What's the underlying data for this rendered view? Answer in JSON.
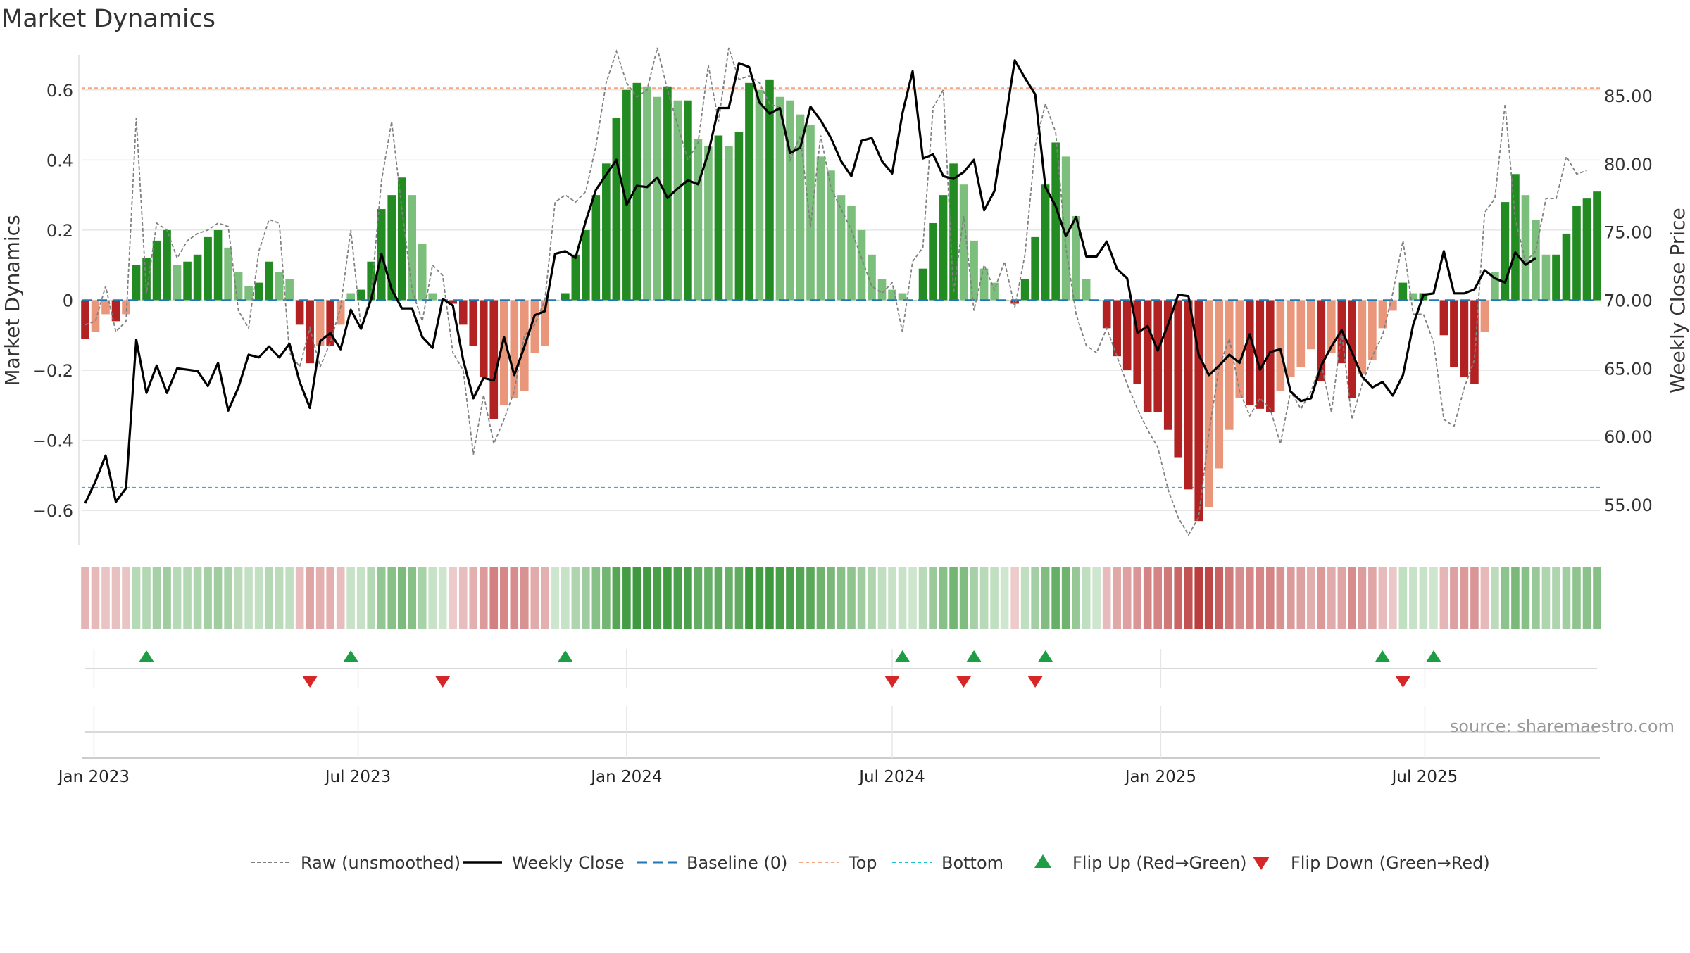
{
  "title": "Market Dynamics",
  "source": "source: sharemaestro.com",
  "chart_data": {
    "type": "bar",
    "title": "Market Dynamics",
    "ylabel_left": "Market Dynamics",
    "ylabel_right": "Weekly Close Price",
    "ylim_left": [
      -0.7,
      0.7
    ],
    "ylim_right": [
      52.0,
      88.0
    ],
    "yticks_left": [
      {
        "value": 0.6,
        "label": "0.6"
      },
      {
        "value": 0.4,
        "label": "0.4"
      },
      {
        "value": 0.2,
        "label": "0.2"
      },
      {
        "value": 0.0,
        "label": "0"
      },
      {
        "value": -0.2,
        "label": "−0.2"
      },
      {
        "value": -0.4,
        "label": "−0.4"
      },
      {
        "value": -0.6,
        "label": "−0.6"
      }
    ],
    "yticks_right": [
      {
        "value": 85,
        "label": "85.00"
      },
      {
        "value": 80,
        "label": "80.00"
      },
      {
        "value": 75,
        "label": "75.00"
      },
      {
        "value": 70,
        "label": "70.00"
      },
      {
        "value": 65,
        "label": "65.00"
      },
      {
        "value": 60,
        "label": "60.00"
      },
      {
        "value": 55,
        "label": "55.00"
      }
    ],
    "x_start": "2022-12-26",
    "xticks": [
      {
        "date": "2023-01-01",
        "label": "Jan 2023"
      },
      {
        "date": "2023-07-01",
        "label": "Jul 2023"
      },
      {
        "date": "2024-01-01",
        "label": "Jan 2024"
      },
      {
        "date": "2024-07-01",
        "label": "Jul 2024"
      },
      {
        "date": "2025-01-01",
        "label": "Jan 2025"
      },
      {
        "date": "2025-07-01",
        "label": "Jul 2025"
      }
    ],
    "top_threshold": 0.605,
    "bottom_threshold": -0.535,
    "baseline": 0,
    "colors": {
      "strong_green": "#228B22",
      "light_green": "#7CBF7C",
      "strong_red": "#B22222",
      "light_red": "#E9967A",
      "weekly_close": "#000000",
      "raw": "#808080",
      "baseline": "#1f77b4",
      "top": "#F4A582",
      "bottom": "#17BECF",
      "flip_up": "#1E9E44",
      "flip_down": "#D62728",
      "grid": "#E6E6E6"
    },
    "series": [
      {
        "name": "Market Dynamics",
        "kind": "bar",
        "values": [
          -0.11,
          -0.09,
          -0.04,
          -0.06,
          -0.04,
          0.1,
          0.12,
          0.17,
          0.2,
          0.1,
          0.11,
          0.13,
          0.18,
          0.2,
          0.15,
          0.08,
          0.04,
          0.05,
          0.11,
          0.08,
          0.06,
          -0.07,
          -0.18,
          -0.13,
          -0.13,
          -0.07,
          0.02,
          0.03,
          0.11,
          0.26,
          0.3,
          0.35,
          0.3,
          0.16,
          0.02,
          0.0,
          -0.01,
          -0.07,
          -0.13,
          -0.22,
          -0.34,
          -0.3,
          -0.28,
          -0.26,
          -0.15,
          -0.13,
          0.0,
          0.02,
          0.13,
          0.2,
          0.3,
          0.39,
          0.52,
          0.6,
          0.62,
          0.61,
          0.58,
          0.61,
          0.57,
          0.57,
          0.46,
          0.44,
          0.47,
          0.44,
          0.48,
          0.62,
          0.6,
          0.63,
          0.58,
          0.57,
          0.53,
          0.5,
          0.41,
          0.37,
          0.3,
          0.27,
          0.2,
          0.13,
          0.06,
          0.03,
          0.02,
          0.0,
          0.09,
          0.22,
          0.3,
          0.39,
          0.33,
          0.17,
          0.09,
          0.05,
          0.0,
          -0.01,
          0.06,
          0.18,
          0.33,
          0.45,
          0.41,
          0.24,
          0.06,
          0.0,
          -0.08,
          -0.16,
          -0.2,
          -0.24,
          -0.32,
          -0.32,
          -0.37,
          -0.45,
          -0.54,
          -0.63,
          -0.59,
          -0.48,
          -0.37,
          -0.28,
          -0.3,
          -0.31,
          -0.32,
          -0.26,
          -0.22,
          -0.19,
          -0.14,
          -0.23,
          -0.15,
          -0.18,
          -0.28,
          -0.21,
          -0.17,
          -0.08,
          -0.03,
          0.05,
          0.02,
          0.02,
          0.0,
          -0.1,
          -0.19,
          -0.22,
          -0.24,
          -0.09,
          0.08,
          0.28,
          0.36,
          0.3,
          0.23,
          0.13,
          0.13,
          0.19,
          0.27,
          0.29,
          0.31
        ]
      },
      {
        "name": "Raw (unsmoothed)",
        "kind": "line",
        "values": [
          -0.07,
          -0.06,
          0.04,
          -0.09,
          -0.06,
          0.52,
          0.02,
          0.22,
          0.2,
          0.12,
          0.17,
          0.19,
          0.2,
          0.22,
          0.21,
          -0.03,
          -0.08,
          0.14,
          0.23,
          0.22,
          -0.15,
          -0.19,
          -0.08,
          -0.19,
          -0.12,
          -0.02,
          0.2,
          -0.08,
          0.02,
          0.34,
          0.51,
          0.26,
          0.03,
          -0.06,
          0.1,
          0.07,
          -0.15,
          -0.2,
          -0.44,
          -0.27,
          -0.41,
          -0.34,
          -0.26,
          -0.1,
          -0.07,
          0.0,
          0.28,
          0.3,
          0.28,
          0.31,
          0.44,
          0.62,
          0.71,
          0.62,
          0.58,
          0.6,
          0.72,
          0.6,
          0.5,
          0.4,
          0.45,
          0.67,
          0.51,
          0.72,
          0.63,
          0.64,
          0.62,
          0.56,
          0.55,
          0.4,
          0.47,
          0.21,
          0.47,
          0.32,
          0.26,
          0.2,
          0.12,
          0.04,
          0.02,
          0.05,
          -0.09,
          0.11,
          0.15,
          0.55,
          0.6,
          0.02,
          0.24,
          -0.03,
          0.1,
          0.03,
          0.11,
          -0.02,
          0.13,
          0.44,
          0.56,
          0.48,
          0.15,
          -0.04,
          -0.13,
          -0.15,
          -0.08,
          -0.16,
          -0.24,
          -0.31,
          -0.37,
          -0.42,
          -0.54,
          -0.62,
          -0.67,
          -0.62,
          -0.38,
          -0.19,
          -0.11,
          -0.26,
          -0.33,
          -0.28,
          -0.31,
          -0.41,
          -0.26,
          -0.31,
          -0.26,
          -0.18,
          -0.32,
          -0.09,
          -0.34,
          -0.24,
          -0.16,
          -0.1,
          0.02,
          0.17,
          -0.04,
          -0.04,
          -0.12,
          -0.34,
          -0.36,
          -0.25,
          -0.17,
          0.25,
          0.29,
          0.56,
          0.23,
          0.11,
          0.14,
          0.29,
          0.29,
          0.41,
          0.36,
          0.37
        ]
      },
      {
        "name": "Weekly Close",
        "kind": "line",
        "axis": "right",
        "values": [
          55.1,
          56.7,
          58.6,
          55.2,
          56.2,
          67.1,
          63.2,
          65.2,
          63.2,
          65.0,
          64.9,
          64.8,
          63.7,
          65.4,
          61.9,
          63.6,
          66.0,
          65.8,
          66.6,
          65.8,
          66.8,
          64.0,
          62.1,
          67.0,
          67.6,
          66.4,
          69.3,
          67.9,
          70.1,
          73.4,
          70.8,
          69.4,
          69.4,
          67.3,
          66.5,
          70.1,
          69.6,
          65.6,
          62.8,
          64.3,
          64.1,
          67.3,
          64.5,
          66.6,
          68.9,
          69.2,
          73.4,
          73.6,
          73.1,
          75.8,
          78.1,
          79.2,
          80.3,
          77.0,
          78.4,
          78.3,
          79.0,
          77.5,
          78.2,
          78.8,
          78.5,
          80.8,
          84.1,
          84.1,
          87.4,
          87.1,
          84.5,
          83.7,
          84.1,
          80.8,
          81.2,
          84.2,
          83.2,
          81.9,
          80.2,
          79.1,
          81.7,
          81.9,
          80.2,
          79.3,
          83.7,
          86.8,
          80.4,
          80.7,
          79.1,
          78.9,
          79.4,
          80.3,
          76.6,
          78.0,
          82.8,
          87.6,
          86.3,
          85.1,
          78.3,
          76.9,
          74.7,
          76.1,
          73.2,
          73.2,
          74.3,
          72.3,
          71.6,
          67.6,
          68.1,
          66.3,
          68.2,
          70.4,
          70.3,
          66.0,
          64.5,
          65.2,
          66.0,
          65.4,
          67.5,
          64.9,
          66.2,
          66.4,
          63.3,
          62.6,
          62.8,
          65.2,
          66.6,
          67.8,
          66.2,
          64.4,
          63.6,
          64.0,
          63.0,
          64.5,
          68.2,
          70.4,
          70.5,
          73.6,
          70.5,
          70.5,
          70.8,
          72.2,
          71.6,
          71.3,
          73.5,
          72.6,
          73.1
        ]
      }
    ],
    "flips_up": [
      "2023-02-06",
      "2023-06-26",
      "2023-11-20",
      "2024-07-08",
      "2024-08-26",
      "2024-10-14",
      "2025-06-02",
      "2025-07-07"
    ],
    "flips_down": [
      "2023-05-29",
      "2023-08-28",
      "2024-07-01",
      "2024-08-19",
      "2024-10-07",
      "2025-06-16"
    ],
    "legend": {
      "placement": "bottom",
      "entries": [
        {
          "label": "Raw (unsmoothed)",
          "kind": "raw"
        },
        {
          "label": "Weekly Close",
          "kind": "close"
        },
        {
          "label": "Baseline (0)",
          "kind": "baseline"
        },
        {
          "label": "Top",
          "kind": "top"
        },
        {
          "label": "Bottom",
          "kind": "bottom"
        },
        {
          "label": "Flip Up (Red→Green)",
          "kind": "flip_up"
        },
        {
          "label": "Flip Down (Green→Red)",
          "kind": "flip_down"
        }
      ]
    },
    "grid": true
  }
}
